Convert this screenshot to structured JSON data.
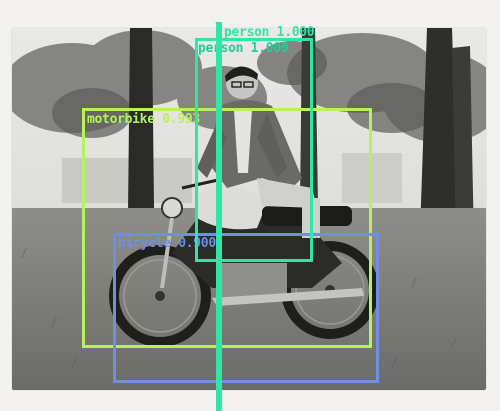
{
  "image": {
    "description_tag": "vintage-photo-man-on-motorcycle"
  },
  "colors": {
    "person_primary": "#2fe6a6",
    "person_secondary": "#1fcf95",
    "motorbike": "#b6f25a",
    "bicycle": "#6f8fe0"
  },
  "detections": [
    {
      "label_text": "person 1.000",
      "color_key": "person_primary"
    },
    {
      "label_text": "person 1.000",
      "color_key": "person_secondary"
    },
    {
      "label_text": "motorbike 0.993",
      "color_key": "motorbike"
    },
    {
      "label_text": "bicycle 0.900",
      "color_key": "bicycle"
    }
  ]
}
